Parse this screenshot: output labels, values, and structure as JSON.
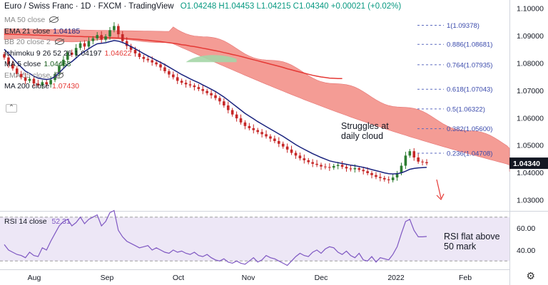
{
  "header": {
    "title": "Euro / Swiss Franc · 1D · FXCM · TradingView",
    "ohlc": "O1.04248 H1.04453 L1.04215 C1.04340 +0.00021 (+0.02%)"
  },
  "indicators": [
    {
      "name": "MA 50 close",
      "value": "",
      "color": "#777777",
      "hidden": true
    },
    {
      "name": "EMA 21 close",
      "value": "1.04185",
      "color": "#1a237e"
    },
    {
      "name": "BB 20 close 2",
      "value": "",
      "color": "#777777",
      "hidden": true
    },
    {
      "name": "Ichimoku 9 26 52 26",
      "value": "1.04197",
      "value2": "1.04622",
      "color": "#131722",
      "color2": "#e53935"
    },
    {
      "name": "MA 5 close",
      "value": "1.04468",
      "color": "#1b5e20"
    },
    {
      "name": "EMA 55 close",
      "value": "",
      "color": "#777777",
      "hidden": true
    },
    {
      "name": "MA 200 close",
      "value": "1.07430",
      "color": "#e53935"
    }
  ],
  "rsi": {
    "name": "RSI 14 close",
    "value": "52.31",
    "color": "#7e57c2"
  },
  "annotations": {
    "cloud_note": [
      "Struggles at",
      "daily cloud"
    ],
    "rsi_note": [
      "RSI flat above",
      "50 mark"
    ]
  },
  "last_price": {
    "label": "1.04340",
    "value": 1.0434
  },
  "colors": {
    "up": "#2e7d32",
    "down": "#c62828",
    "cloud": "#f28b82",
    "cloud_green": "#a5d6a7",
    "ema21": "#1a237e",
    "ma200": "#e53935",
    "rsi": "#7e57c2",
    "rsi_band": "#ede7f6",
    "fib": "#5c6bc0",
    "arrow": "#e53935"
  },
  "chart_data": {
    "type": "candlestick",
    "instrument": "Euro / Swiss Franc",
    "timeframe": "1D",
    "x_ticks": [
      "Aug",
      "Sep",
      "Oct",
      "Nov",
      "Dec",
      "2022",
      "Feb"
    ],
    "y_ticks": [
      "1.10000",
      "1.09000",
      "1.08000",
      "1.07000",
      "1.06000",
      "1.05000",
      "1.04000",
      "1.03000"
    ],
    "ylim": [
      1.026,
      1.103
    ],
    "fib_levels": [
      {
        "label": "1(1.09378)",
        "value": 1.09378
      },
      {
        "label": "0.886(1.08681)",
        "value": 1.08681
      },
      {
        "label": "0.764(1.07935)",
        "value": 1.07935
      },
      {
        "label": "0.618(1.07043)",
        "value": 1.07043
      },
      {
        "label": "0.5(1.06322)",
        "value": 1.06322
      },
      {
        "label": "0.382(1.05600)",
        "value": 1.056
      },
      {
        "label": "0.236(1.04708)",
        "value": 1.04708
      }
    ],
    "close": [
      1.082,
      1.0795,
      1.078,
      1.076,
      1.0748,
      1.0735,
      1.0742,
      1.0725,
      1.0718,
      1.073,
      1.0722,
      1.0738,
      1.076,
      1.079,
      1.0812,
      1.0838,
      1.083,
      1.0855,
      1.0872,
      1.086,
      1.088,
      1.089,
      1.0902,
      1.0885,
      1.0897,
      1.092,
      1.0935,
      1.0905,
      1.088,
      1.0862,
      1.0848,
      1.0835,
      1.0822,
      1.0815,
      1.081,
      1.0802,
      1.0795,
      1.0784,
      1.077,
      1.0758,
      1.0748,
      1.0735,
      1.0728,
      1.0722,
      1.0718,
      1.0712,
      1.0705,
      1.0698,
      1.069,
      1.0682,
      1.0672,
      1.066,
      1.0645,
      1.0628,
      1.0612,
      1.0598,
      1.0583,
      1.057,
      1.0562,
      1.0555,
      1.0548,
      1.054,
      1.0532,
      1.0524,
      1.0515,
      1.0505,
      1.0495,
      1.0484,
      1.0472,
      1.0462,
      1.0452,
      1.0445,
      1.0438,
      1.0432,
      1.0428,
      1.0422,
      1.042,
      1.0418,
      1.0424,
      1.0428,
      1.0421,
      1.0415,
      1.0412,
      1.0416,
      1.041,
      1.0405,
      1.0398,
      1.0391,
      1.0384,
      1.038,
      1.0375,
      1.0372,
      1.0382,
      1.0398,
      1.0425,
      1.0462,
      1.0478,
      1.0455,
      1.044,
      1.0438,
      1.0434
    ],
    "ema21": [
      1.085,
      1.0835,
      1.0818,
      1.08,
      1.0785,
      1.077,
      1.0762,
      1.0752,
      1.0745,
      1.0742,
      1.074,
      1.0742,
      1.075,
      1.0765,
      1.078,
      1.0795,
      1.0805,
      1.0818,
      1.0832,
      1.0842,
      1.0852,
      1.0862,
      1.087,
      1.0872,
      1.0874,
      1.0878,
      1.0882,
      1.088,
      1.0875,
      1.0868,
      1.086,
      1.0852,
      1.0843,
      1.0834,
      1.0826,
      1.0818,
      1.081,
      1.0802,
      1.0794,
      1.0785,
      1.0776,
      1.0767,
      1.0758,
      1.075,
      1.0742,
      1.0735,
      1.0728,
      1.072,
      1.0712,
      1.0704,
      1.0696,
      1.0686,
      1.0676,
      1.0664,
      1.0652,
      1.064,
      1.0628,
      1.0616,
      1.0606,
      1.0596,
      1.0586,
      1.0577,
      1.0568,
      1.0559,
      1.055,
      1.0541,
      1.0532,
      1.0522,
      1.0512,
      1.0502,
      1.0493,
      1.0485,
      1.0477,
      1.0469,
      1.0462,
      1.0455,
      1.0449,
      1.0443,
      1.0439,
      1.0436,
      1.0433,
      1.043,
      1.0427,
      1.0425,
      1.0422,
      1.0419,
      1.0415,
      1.0411,
      1.0407,
      1.0403,
      1.0399,
      1.0396,
      1.0395,
      1.0396,
      1.0399,
      1.0405,
      1.0412,
      1.0415,
      1.0417,
      1.0418,
      1.0419
    ],
    "ma200": [
      1.0905,
      1.0905,
      1.0905,
      1.0904,
      1.0904,
      1.0903,
      1.0903,
      1.0902,
      1.0902,
      1.0901,
      1.0901,
      1.09,
      1.09,
      1.0899,
      1.0899,
      1.0898,
      1.0898,
      1.0897,
      1.0897,
      1.0896,
      1.0896,
      1.0895,
      1.0895,
      1.0894,
      1.0893,
      1.0893,
      1.0892,
      1.0891,
      1.089,
      1.0889,
      1.0888,
      1.0887,
      1.0886,
      1.0884,
      1.0883,
      1.0881,
      1.088,
      1.0878,
      1.0876,
      1.0874,
      1.0872,
      1.087,
      1.0867,
      1.0865,
      1.0862,
      1.086,
      1.0857,
      1.0854,
      1.0851,
      1.0848,
      1.0845,
      1.0842,
      1.0838,
      1.0835,
      1.0831,
      1.0828,
      1.0824,
      1.082,
      1.0816,
      1.0812,
      1.0808,
      1.0804,
      1.08,
      1.0796,
      1.0792,
      1.0788,
      1.0784,
      1.0779,
      1.0775,
      1.0771,
      1.0767,
      1.0763,
      1.0759,
      1.0755,
      1.0752,
      1.0749,
      1.0747,
      1.0745,
      1.0744,
      1.0743,
      1.0743
    ],
    "rsi": [
      45,
      40,
      38,
      36,
      35,
      33,
      38,
      35,
      34,
      42,
      40,
      48,
      55,
      62,
      66,
      68,
      62,
      65,
      70,
      64,
      68,
      70,
      72,
      62,
      66,
      74,
      76,
      58,
      52,
      48,
      46,
      44,
      42,
      43,
      44,
      40,
      42,
      40,
      38,
      37,
      40,
      38,
      39,
      37,
      36,
      38,
      35,
      34,
      36,
      33,
      31,
      30,
      32,
      29,
      28,
      30,
      28,
      27,
      30,
      33,
      29,
      31,
      35,
      33,
      32,
      30,
      28,
      26,
      30,
      34,
      37,
      35,
      34,
      38,
      40,
      37,
      41,
      43,
      42,
      38,
      36,
      39,
      35,
      33,
      37,
      31,
      30,
      34,
      29,
      33,
      32,
      31,
      36,
      43,
      55,
      66,
      68,
      58,
      52,
      52,
      52.31
    ],
    "rsi_ylim": [
      25,
      75
    ],
    "rsi_ticks": [
      "60.00",
      "40.00"
    ]
  }
}
